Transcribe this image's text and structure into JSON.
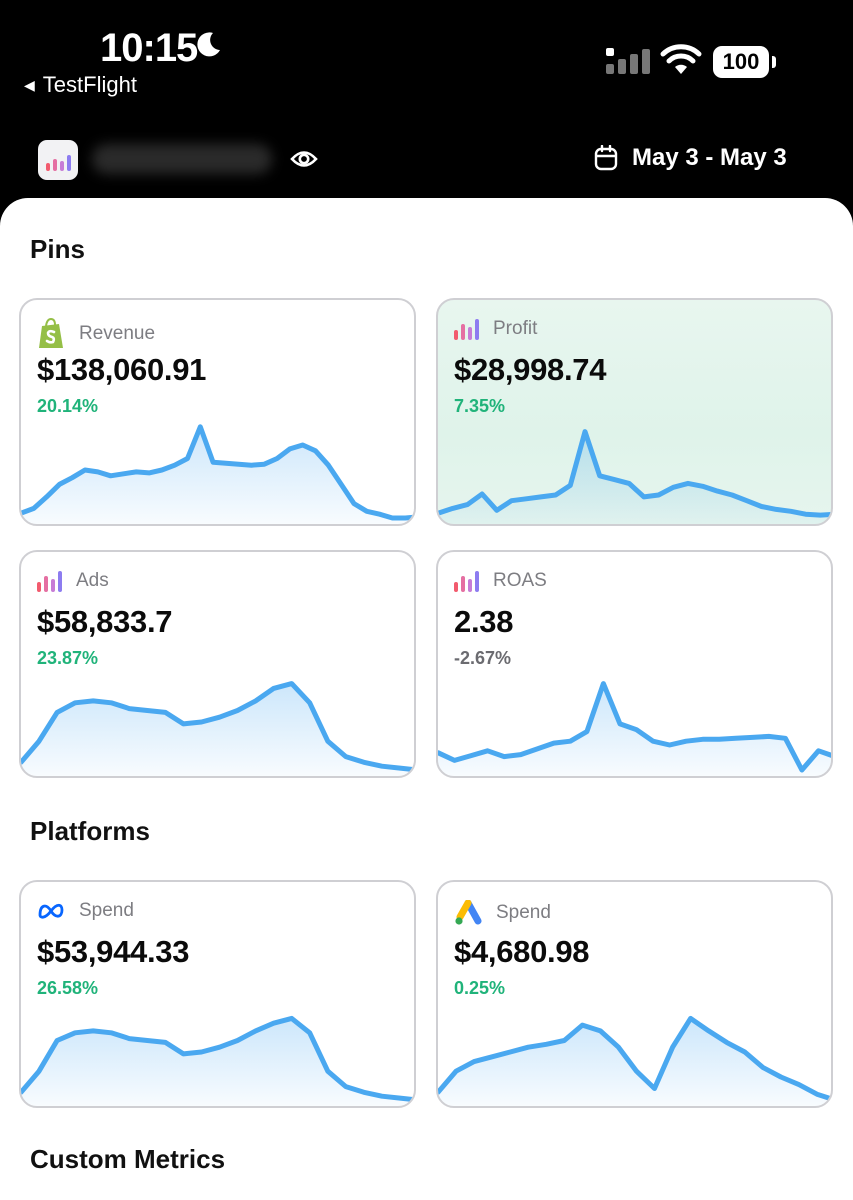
{
  "status_bar": {
    "time": "10:15",
    "back_app": "TestFlight",
    "battery": "100",
    "icons": [
      "moon-icon",
      "cellular-signal-icon",
      "wifi-icon",
      "battery-icon"
    ]
  },
  "header": {
    "date_range": "May 3 - May 3",
    "icons": [
      "app-logo-icon",
      "eye-icon",
      "calendar-icon"
    ]
  },
  "sections": {
    "pins": "Pins",
    "platforms": "Platforms",
    "custom_metrics": "Custom Metrics"
  },
  "pins": [
    {
      "label": "Revenue",
      "value": "$138,060.91",
      "change": "20.14%",
      "trend": "up",
      "icon": "shopify-icon",
      "series": [
        0.05,
        0.1,
        0.22,
        0.35,
        0.42,
        0.5,
        0.48,
        0.44,
        0.46,
        0.48,
        0.47,
        0.5,
        0.55,
        0.62,
        0.95,
        0.58,
        0.57,
        0.56,
        0.55,
        0.56,
        0.62,
        0.72,
        0.76,
        0.7,
        0.55,
        0.35,
        0.15,
        0.07,
        0.04,
        0.0,
        0.0,
        0.01
      ]
    },
    {
      "label": "Profit",
      "value": "$28,998.74",
      "change": "7.35%",
      "trend": "up",
      "icon": "chart-bars-icon",
      "highlight": true,
      "series": [
        0.05,
        0.1,
        0.14,
        0.25,
        0.08,
        0.18,
        0.2,
        0.22,
        0.24,
        0.34,
        0.9,
        0.44,
        0.4,
        0.36,
        0.22,
        0.24,
        0.32,
        0.36,
        0.33,
        0.28,
        0.24,
        0.18,
        0.12,
        0.09,
        0.07,
        0.04,
        0.03,
        0.04
      ]
    },
    {
      "label": "Ads",
      "value": "$58,833.7",
      "change": "23.87%",
      "trend": "up",
      "icon": "chart-bars-icon",
      "series": [
        0.08,
        0.3,
        0.6,
        0.7,
        0.72,
        0.7,
        0.64,
        0.62,
        0.6,
        0.48,
        0.5,
        0.55,
        0.62,
        0.72,
        0.85,
        0.9,
        0.7,
        0.3,
        0.14,
        0.08,
        0.04,
        0.02,
        0.0
      ]
    },
    {
      "label": "ROAS",
      "value": "2.38",
      "change": "-2.67%",
      "trend": "down",
      "icon": "chart-bars-icon",
      "series": [
        0.18,
        0.1,
        0.15,
        0.2,
        0.14,
        0.16,
        0.22,
        0.28,
        0.3,
        0.4,
        0.9,
        0.48,
        0.42,
        0.3,
        0.26,
        0.3,
        0.32,
        0.32,
        0.33,
        0.34,
        0.35,
        0.33,
        0.0,
        0.2,
        0.14
      ]
    }
  ],
  "platforms": [
    {
      "label": "Spend",
      "value": "$53,944.33",
      "change": "26.58%",
      "trend": "up",
      "icon": "meta-icon",
      "series": [
        0.08,
        0.3,
        0.62,
        0.7,
        0.72,
        0.7,
        0.64,
        0.62,
        0.6,
        0.48,
        0.5,
        0.55,
        0.62,
        0.72,
        0.8,
        0.85,
        0.7,
        0.3,
        0.14,
        0.08,
        0.04,
        0.02,
        0.0
      ]
    },
    {
      "label": "Spend",
      "value": "$4,680.98",
      "change": "0.25%",
      "trend": "up",
      "icon": "google-ads-icon",
      "series": [
        0.08,
        0.3,
        0.4,
        0.45,
        0.5,
        0.55,
        0.58,
        0.62,
        0.78,
        0.72,
        0.55,
        0.3,
        0.12,
        0.55,
        0.85,
        0.72,
        0.6,
        0.5,
        0.34,
        0.24,
        0.16,
        0.06,
        0.0
      ]
    }
  ]
}
